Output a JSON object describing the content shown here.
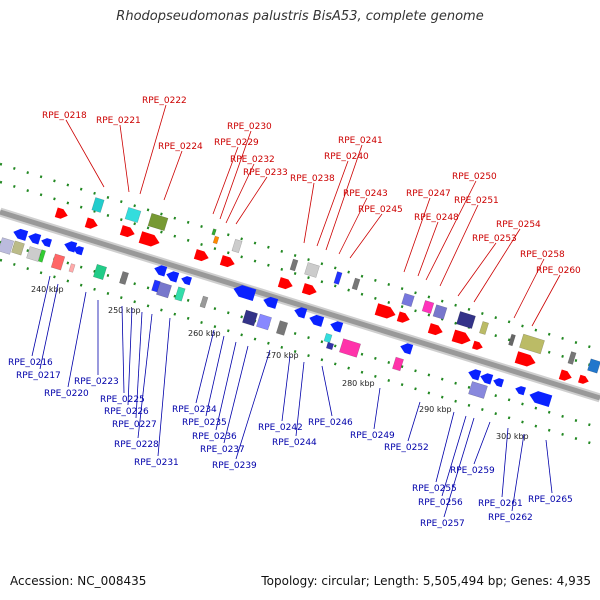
{
  "title": "Rhodopseudomonas palustris BisA53, complete genome",
  "footer": {
    "accession": "Accession: NC_008435",
    "topology": "Topology: circular; Length: 5,505,494 bp; Genes: 4,935"
  },
  "colors": {
    "top_labels": "#cc0000",
    "bottom_labels": "#0000aa",
    "forward_genes": "#ff0000",
    "reverse_genes": "#0a22ff",
    "backbone": "#999999",
    "ticks": "#228822"
  },
  "scale_ticks": [
    "240 kbp",
    "250 kbp",
    "260 kbp",
    "270 kbp",
    "280 kbp",
    "290 kbp",
    "300 kbp"
  ],
  "labels_top": [
    "RPE_0218",
    "RPE_0221",
    "RPE_0222",
    "RPE_0224",
    "RPE_0229",
    "RPE_0230",
    "RPE_0232",
    "RPE_0233",
    "RPE_0238",
    "RPE_0240",
    "RPE_0241",
    "RPE_0243",
    "RPE_0245",
    "RPE_0247",
    "RPE_0248",
    "RPE_0250",
    "RPE_0251",
    "RPE_0253",
    "RPE_0254",
    "RPE_0258",
    "RPE_0260"
  ],
  "labels_bottom": [
    "RPE_0216",
    "RPE_0217",
    "RPE_0220",
    "RPE_0223",
    "RPE_0225",
    "RPE_0226",
    "RPE_0227",
    "RPE_0228",
    "RPE_0231",
    "RPE_0234",
    "RPE_0235",
    "RPE_0236",
    "RPE_0237",
    "RPE_0239",
    "RPE_0242",
    "RPE_0244",
    "RPE_0246",
    "RPE_0249",
    "RPE_0252",
    "RPE_0255",
    "RPE_0256",
    "RPE_0257",
    "RPE_0259",
    "RPE_0261",
    "RPE_0262",
    "RPE_0265"
  ]
}
